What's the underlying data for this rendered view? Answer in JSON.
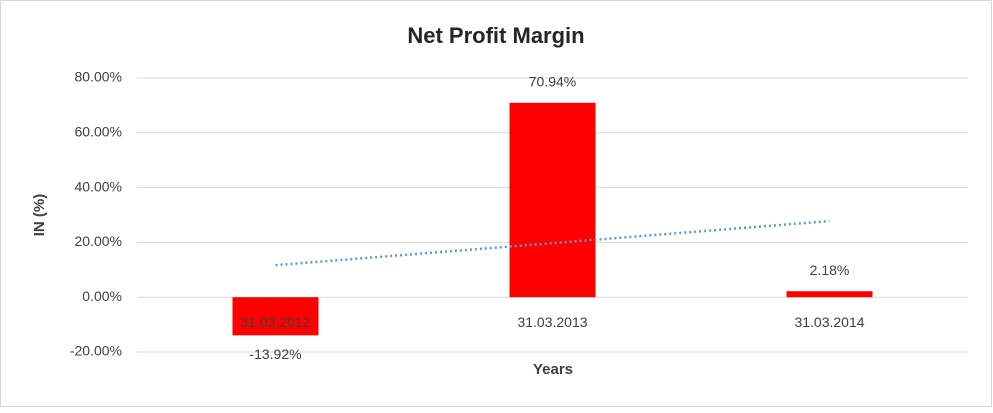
{
  "chart_data": {
    "type": "bar",
    "title": "Net Profit Margin",
    "x_label": "Years",
    "y_label": "IN (%)",
    "categories": [
      "31.03.2012",
      "31.03.2013",
      "31.03.2014"
    ],
    "values": [
      -13.92,
      70.94,
      2.18
    ],
    "value_labels": [
      "-13.92%",
      "70.94%",
      "2.18%"
    ],
    "color": "#ff0000",
    "ylim": [
      -20,
      80
    ],
    "yticks": [
      {
        "value": -20,
        "label": "-20.00%"
      },
      {
        "value": 0,
        "label": "0.00%"
      },
      {
        "value": 20,
        "label": "20.00%"
      },
      {
        "value": 40,
        "label": "40.00%"
      },
      {
        "value": 60,
        "label": "60.00%"
      },
      {
        "value": 80,
        "label": "80.00%"
      }
    ],
    "grid": true,
    "trendline": "linear",
    "trendline_color": "#5b9bd5"
  }
}
